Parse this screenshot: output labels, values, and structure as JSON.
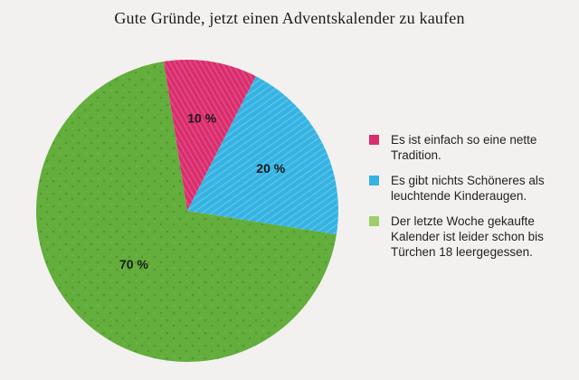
{
  "chart_data": {
    "type": "pie",
    "title": "Gute Gründe, jetzt einen Adventskalender zu kaufen",
    "slices": [
      {
        "label": "Es ist einfach so eine nette Tradition.",
        "value": 10,
        "value_label": "10 %",
        "color": "#d92e6e"
      },
      {
        "label": "Es gibt nichts Schöneres als leuchtende Kinderaugen.",
        "value": 20,
        "value_label": "20 %",
        "color": "#35b3e2"
      },
      {
        "label": "Der letzte Woche gekaufte Kalender ist leider schon bis Türchen 18 leergegessen.",
        "value": 70,
        "value_label": "70 %",
        "color": "#63ae3c"
      }
    ],
    "legend_position": "right",
    "start_angle": "top, slightly left of center"
  }
}
